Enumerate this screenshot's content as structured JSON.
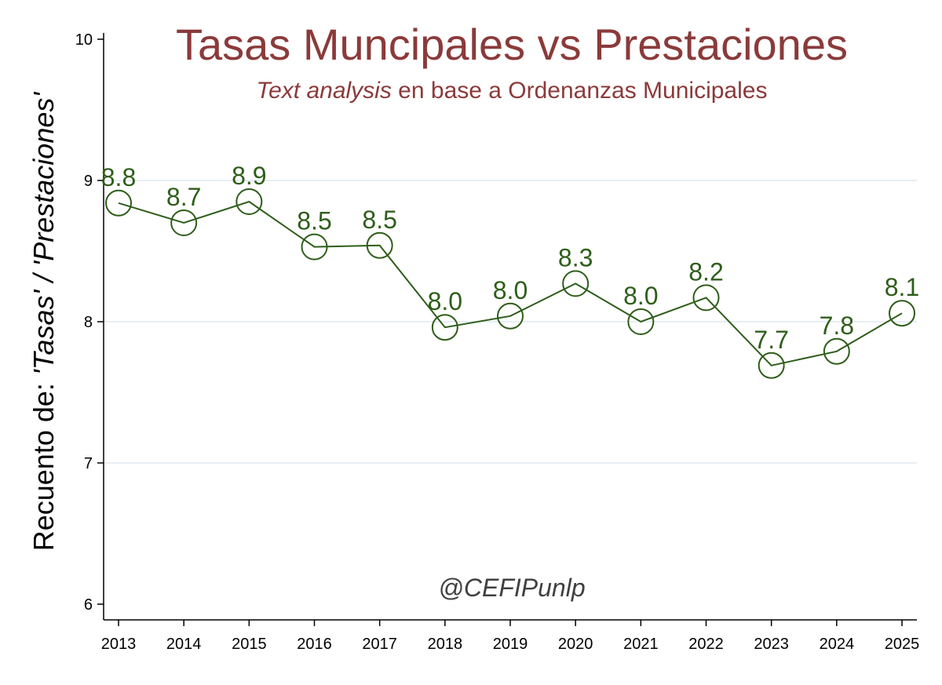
{
  "chart_data": {
    "type": "line",
    "title": "Tasas Muncipales vs Prestaciones",
    "subtitle_italic": "Text analysis",
    "subtitle_rest": " en base a Ordenanzas Municipales",
    "ylabel_prefix": "Recuento de: ",
    "ylabel_italic": "'Tasas' / 'Prestaciones'",
    "xlabel": "",
    "ylim": [
      6,
      10
    ],
    "yticks": [
      6,
      7,
      8,
      9,
      10
    ],
    "grid": true,
    "watermark": "@CEFIPunlp",
    "x": [
      "2013",
      "2014",
      "2015",
      "2016",
      "2017",
      "2018",
      "2019",
      "2020",
      "2021",
      "2022",
      "2023",
      "2024",
      "2025"
    ],
    "series": [
      {
        "values": [
          8.84,
          8.7,
          8.85,
          8.53,
          8.54,
          7.96,
          8.04,
          8.27,
          8.0,
          8.17,
          7.69,
          7.79,
          8.06
        ],
        "labels": [
          "8.8",
          "8.7",
          "8.9",
          "8.5",
          "8.5",
          "8.0",
          "8.0",
          "8.3",
          "8.0",
          "8.2",
          "7.7",
          "7.8",
          "8.1"
        ]
      }
    ],
    "colors": {
      "title": "#8b3a3a",
      "series": "#2e5e1a",
      "grid": "#e8eef4",
      "axis": "#000000",
      "watermark": "#404040"
    }
  }
}
